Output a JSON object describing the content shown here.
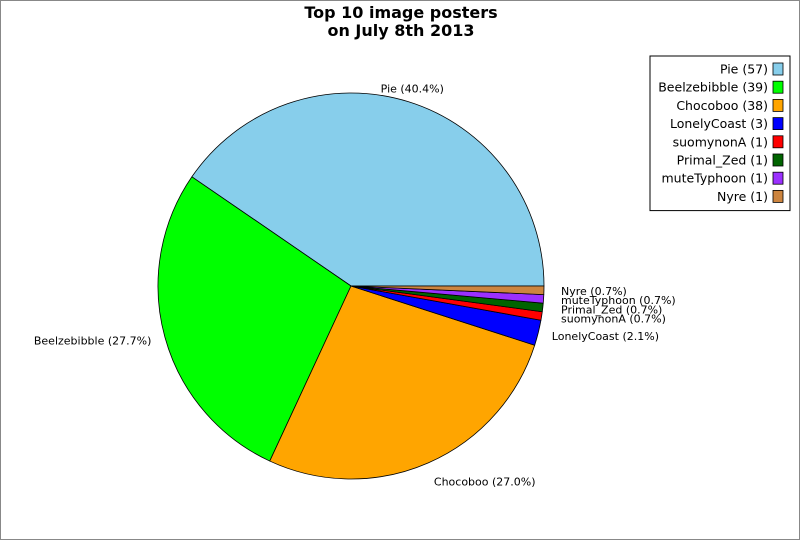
{
  "chart_data": {
    "type": "pie",
    "title": [
      "Top 10 image posters",
      "on July 8th 2013"
    ],
    "slices": [
      {
        "name": "Pie",
        "count": 57,
        "percent": 40.4,
        "color": "#87ceeb",
        "label": "Pie (40.4%)",
        "legend": "Pie (57)"
      },
      {
        "name": "Beelzebibble",
        "count": 39,
        "percent": 27.7,
        "color": "#00ff00",
        "label": "Beelzebibble (27.7%)",
        "legend": "Beelzebibble (39)"
      },
      {
        "name": "Chocoboo",
        "count": 38,
        "percent": 27.0,
        "color": "#ffa500",
        "label": "Chocoboo (27.0%)",
        "legend": "Chocoboo (38)"
      },
      {
        "name": "LonelyCoast",
        "count": 3,
        "percent": 2.1,
        "color": "#0000ff",
        "label": "LonelyCoast (2.1%)",
        "legend": "LonelyCoast (3)"
      },
      {
        "name": "suomynonA",
        "count": 1,
        "percent": 0.7,
        "color": "#ff0000",
        "label": "suomynonA (0.7%)",
        "legend": "suomynonA (1)"
      },
      {
        "name": "Primal_Zed",
        "count": 1,
        "percent": 0.7,
        "color": "#006400",
        "label": "Primal_Zed (0.7%)",
        "legend": "Primal_Zed (1)"
      },
      {
        "name": "muteTyphoon",
        "count": 1,
        "percent": 0.7,
        "color": "#9b30ff",
        "label": "muteTyphoon (0.7%)",
        "legend": "muteTyphoon (1)"
      },
      {
        "name": "Nyre",
        "count": 1,
        "percent": 0.7,
        "color": "#cd853f",
        "label": "Nyre (0.7%)",
        "legend": "Nyre (1)"
      }
    ],
    "legend_position": "top-right"
  }
}
